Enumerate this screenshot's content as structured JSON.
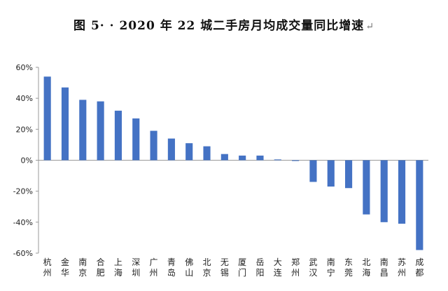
{
  "title": {
    "text": "图 5· · 2020 年 22 城二手房月均成交量同比增速",
    "trailing_mark": "↵"
  },
  "chart_data": {
    "type": "bar",
    "title": "图 5· · 2020 年 22 城二手房月均成交量同比增速",
    "xlabel": "",
    "ylabel": "",
    "ylim": [
      -60,
      60
    ],
    "yticks": [
      60,
      40,
      20,
      0,
      -20,
      -40,
      -60
    ],
    "ytick_labels": [
      "60%",
      "40%",
      "20%",
      "0%",
      "-20%",
      "-40%",
      "-60%"
    ],
    "grid": false,
    "legend": "none",
    "bar_color": "#4472C4",
    "categories": [
      "杭州",
      "金华",
      "南京",
      "合肥",
      "上海",
      "深圳",
      "广州",
      "青岛",
      "佛山",
      "北京",
      "无锡",
      "厦门",
      "岳阳",
      "大连",
      "郑州",
      "武汉",
      "南宁",
      "东莞",
      "北海",
      "南昌",
      "苏州",
      "成都"
    ],
    "values": [
      54,
      47,
      39,
      38,
      32,
      27,
      19,
      14,
      11,
      9,
      4,
      3,
      3,
      0.5,
      -0.5,
      -14,
      -17,
      -18,
      -35,
      -40,
      -41,
      -58
    ]
  }
}
